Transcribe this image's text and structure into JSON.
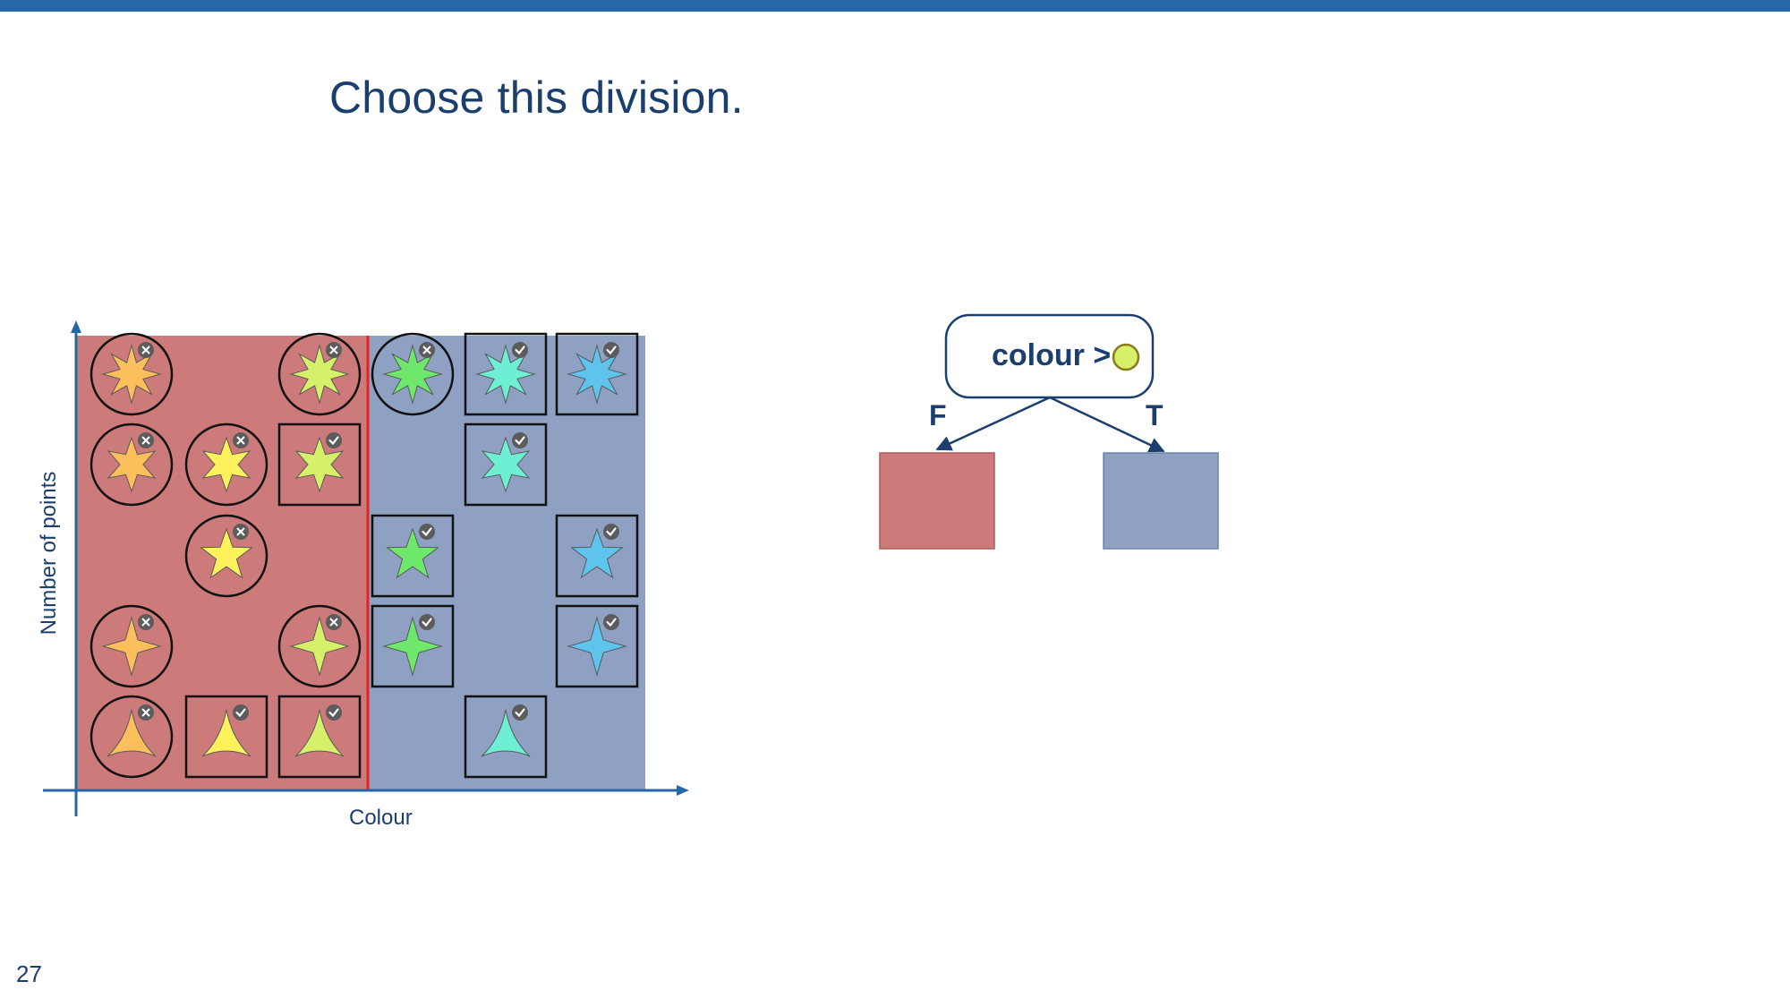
{
  "slide": {
    "title": "Choose this division.",
    "page_number": "27",
    "accent_color": "#2667a8",
    "text_color": "#1a3e6e"
  },
  "plot": {
    "y_label": "Number of points",
    "x_label": "Colour",
    "false_region_color": "#cc7b7a",
    "true_region_color": "#8ea1c3",
    "split_line_color": "#e8231f",
    "columns": [
      "orange",
      "yellow",
      "yellow-green",
      "green",
      "teal",
      "blue"
    ],
    "rows": [
      "8 points",
      "6 points",
      "5 points",
      "4 points",
      "3 points"
    ],
    "samples": [
      {
        "row": 0,
        "col": 0,
        "shape": "star8",
        "fill": "#fdbf5b",
        "frame": "circle",
        "mark": "cross"
      },
      {
        "row": 0,
        "col": 2,
        "shape": "star8",
        "fill": "#d6f06a",
        "frame": "circle",
        "mark": "cross"
      },
      {
        "row": 0,
        "col": 3,
        "shape": "star8",
        "fill": "#6ee86a",
        "frame": "circle",
        "mark": "cross"
      },
      {
        "row": 0,
        "col": 4,
        "shape": "star8",
        "fill": "#6eeed2",
        "frame": "square",
        "mark": "check"
      },
      {
        "row": 0,
        "col": 5,
        "shape": "star8",
        "fill": "#5ec4ee",
        "frame": "square",
        "mark": "check"
      },
      {
        "row": 1,
        "col": 0,
        "shape": "star6",
        "fill": "#fdbf5b",
        "frame": "circle",
        "mark": "cross"
      },
      {
        "row": 1,
        "col": 1,
        "shape": "star6",
        "fill": "#fdf25c",
        "frame": "circle",
        "mark": "cross"
      },
      {
        "row": 1,
        "col": 2,
        "shape": "star6",
        "fill": "#d6f06a",
        "frame": "square",
        "mark": "check"
      },
      {
        "row": 1,
        "col": 4,
        "shape": "star6",
        "fill": "#6eeed2",
        "frame": "square",
        "mark": "check"
      },
      {
        "row": 2,
        "col": 1,
        "shape": "star5",
        "fill": "#fdf25c",
        "frame": "circle",
        "mark": "cross"
      },
      {
        "row": 2,
        "col": 3,
        "shape": "star5",
        "fill": "#6ee86a",
        "frame": "square",
        "mark": "check"
      },
      {
        "row": 2,
        "col": 5,
        "shape": "star5",
        "fill": "#5ec4ee",
        "frame": "square",
        "mark": "check"
      },
      {
        "row": 3,
        "col": 0,
        "shape": "star4",
        "fill": "#fdbf5b",
        "frame": "circle",
        "mark": "cross"
      },
      {
        "row": 3,
        "col": 2,
        "shape": "star4",
        "fill": "#d6f06a",
        "frame": "circle",
        "mark": "cross"
      },
      {
        "row": 3,
        "col": 3,
        "shape": "star4",
        "fill": "#6ee86a",
        "frame": "square",
        "mark": "check"
      },
      {
        "row": 3,
        "col": 5,
        "shape": "star4",
        "fill": "#5ec4ee",
        "frame": "square",
        "mark": "check"
      },
      {
        "row": 4,
        "col": 0,
        "shape": "tri",
        "fill": "#fdbf5b",
        "frame": "circle",
        "mark": "cross"
      },
      {
        "row": 4,
        "col": 1,
        "shape": "tri",
        "fill": "#fdf25c",
        "frame": "square",
        "mark": "check"
      },
      {
        "row": 4,
        "col": 2,
        "shape": "tri",
        "fill": "#d6f06a",
        "frame": "square",
        "mark": "check"
      },
      {
        "row": 4,
        "col": 4,
        "shape": "tri",
        "fill": "#6eeed2",
        "frame": "square",
        "mark": "check"
      }
    ]
  },
  "tree": {
    "condition_label": "colour >",
    "threshold_color": "#d6f06a",
    "false_label": "F",
    "true_label": "T",
    "false_leaf_color": "#cc7b7a",
    "true_leaf_color": "#8ea1c3"
  },
  "icons": {
    "cross": "cross-circle-icon",
    "check": "check-circle-icon"
  }
}
